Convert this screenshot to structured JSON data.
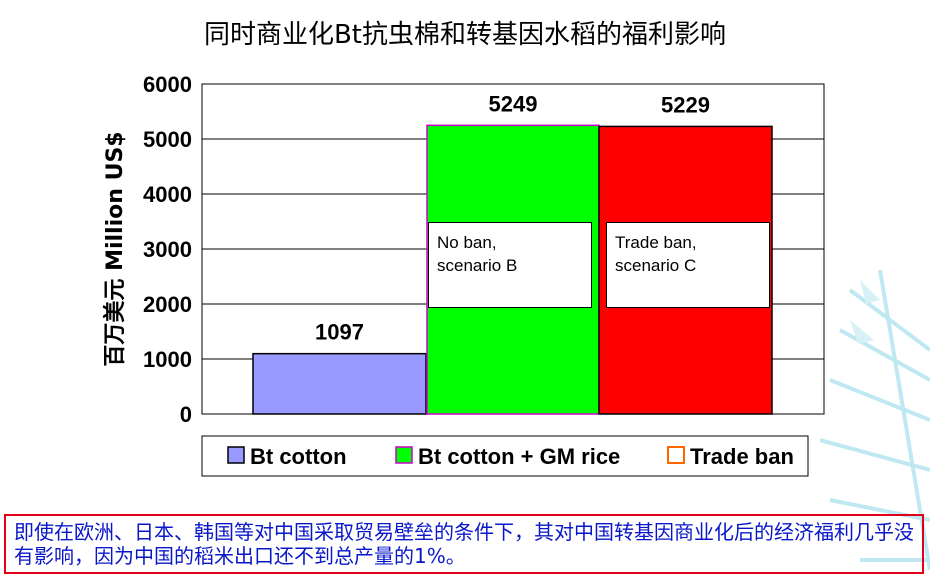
{
  "chart_data": {
    "type": "bar",
    "title": "同时商业化Bt抗虫棉和转基因水稻的福利影响",
    "ylabel": "百万美元 Million US$",
    "ylim": [
      0,
      6000
    ],
    "yticks": [
      "0",
      "1000",
      "2000",
      "3000",
      "4000",
      "5000",
      "6000"
    ],
    "series": [
      {
        "name": "Bt cotton",
        "values": [
          1097
        ],
        "color": "#9999ff",
        "data_label": "1097"
      },
      {
        "name": "Bt cotton + GM rice",
        "values": [
          5249
        ],
        "color": "#00ff00",
        "data_label": "5249"
      },
      {
        "name": "Trade ban",
        "values": [
          5229
        ],
        "color": "#ff0000",
        "data_label": "5229"
      }
    ],
    "annotations": [
      {
        "line1": "No ban,",
        "line2": "scenario B"
      },
      {
        "line1": "Trade ban,",
        "line2": "scenario C"
      }
    ],
    "legend_position": "bottom",
    "grid": true
  },
  "note": "即使在欧洲、日本、韩国等对中国采取贸易壁垒的条件下，其对中国转基因商业化后的经济福利几乎没有影响，因为中国的稻米出口还不到总产量的1%。"
}
